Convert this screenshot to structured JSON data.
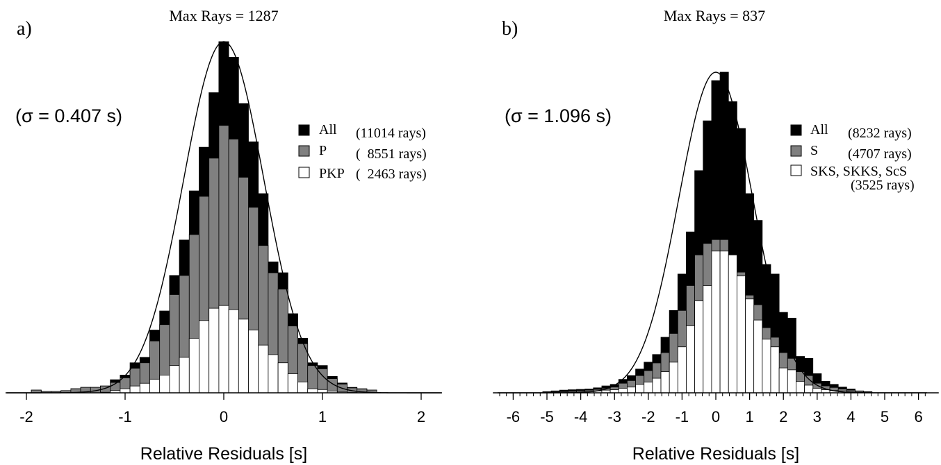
{
  "colors": {
    "all": "#000000",
    "p": "#808080",
    "pkp": "#ffffff",
    "outline": "#000000"
  },
  "chart_data": [
    {
      "type": "bar",
      "panel_label": "a)",
      "title": "Max Rays = 1287",
      "sigma_text": "(σ = 0.407 s)",
      "xlabel": "Relative Residuals [s]",
      "ylabel": "",
      "xlim": [
        -2.2,
        2.2
      ],
      "ylim": [
        0,
        1287
      ],
      "bin_width": 0.1,
      "xticks": [
        -2,
        -1,
        0,
        1,
        2
      ],
      "xtick_labels": [
        "-2",
        "-1",
        "0",
        "1",
        "2"
      ],
      "legend": [
        {
          "label": "All",
          "count": "(11014 rays)",
          "swatch": "all"
        },
        {
          "label": "P",
          "count": "(  8551 rays)",
          "swatch": "p"
        },
        {
          "label": "PKP",
          "count": "(  2463 rays)",
          "swatch": "pkp"
        }
      ],
      "x": [
        -1.9,
        -1.8,
        -1.7,
        -1.6,
        -1.5,
        -1.4,
        -1.3,
        -1.2,
        -1.1,
        -1.0,
        -0.9,
        -0.8,
        -0.7,
        -0.6,
        -0.5,
        -0.4,
        -0.3,
        -0.2,
        -0.1,
        0.0,
        0.1,
        0.2,
        0.3,
        0.4,
        0.5,
        0.6,
        0.7,
        0.8,
        0.9,
        1.0,
        1.1,
        1.2,
        1.3,
        1.4,
        1.5
      ],
      "series": [
        {
          "name": "All",
          "values": [
            10,
            5,
            5,
            8,
            15,
            20,
            20,
            25,
            48,
            65,
            110,
            130,
            230,
            300,
            430,
            560,
            740,
            900,
            1100,
            1287,
            1230,
            1060,
            920,
            730,
            480,
            440,
            290,
            200,
            110,
            100,
            60,
            36,
            20,
            15,
            10
          ]
        },
        {
          "name": "P",
          "values": [
            10,
            5,
            5,
            8,
            15,
            20,
            20,
            25,
            38,
            55,
            90,
            110,
            190,
            250,
            360,
            430,
            580,
            720,
            860,
            980,
            930,
            790,
            680,
            540,
            440,
            380,
            245,
            180,
            100,
            88,
            52,
            32,
            18,
            14,
            10
          ]
        },
        {
          "name": "PKP",
          "values": [
            0,
            0,
            0,
            0,
            0,
            0,
            0,
            2,
            8,
            15,
            25,
            35,
            50,
            65,
            100,
            130,
            200,
            265,
            310,
            320,
            305,
            270,
            230,
            175,
            140,
            110,
            70,
            40,
            15,
            12,
            6,
            3,
            1,
            0,
            0
          ]
        }
      ],
      "curve": {
        "type": "gaussian",
        "mu": 0.0,
        "sigma": 0.407,
        "peak": 1287
      }
    },
    {
      "type": "bar",
      "panel_label": "b)",
      "title": "Max Rays = 837",
      "sigma_text": "(σ = 1.096 s)",
      "xlabel": "Relative Residuals [s]",
      "ylabel": "",
      "xlim": [
        -6.6,
        6.6
      ],
      "ylim": [
        0,
        837
      ],
      "bin_width": 0.25,
      "xticks": [
        -6,
        -5,
        -4,
        -3,
        -2,
        -1,
        0,
        1,
        2,
        3,
        4,
        5,
        6
      ],
      "xtick_labels": [
        "-6",
        "-5",
        "-4",
        "-3",
        "-2",
        "-1",
        "0",
        "1",
        "2",
        "3",
        "4",
        "5",
        "6"
      ],
      "legend": [
        {
          "label": "All",
          "count": "(8232 rays)",
          "swatch": "all"
        },
        {
          "label": "S",
          "count": "(4707 rays)",
          "swatch": "p"
        },
        {
          "label": "SKS, SKKS, ScS",
          "count": "(3525 rays)",
          "swatch": "pkp"
        }
      ],
      "x": [
        -5.0,
        -4.75,
        -4.5,
        -4.25,
        -4.0,
        -3.75,
        -3.5,
        -3.25,
        -3.0,
        -2.75,
        -2.5,
        -2.25,
        -2.0,
        -1.75,
        -1.5,
        -1.25,
        -1.0,
        -0.75,
        -0.5,
        -0.25,
        0.0,
        0.25,
        0.5,
        0.75,
        1.0,
        1.25,
        1.5,
        1.75,
        2.0,
        2.25,
        2.5,
        2.75,
        3.0,
        3.25,
        3.5,
        3.75,
        4.0,
        4.25,
        4.5
      ],
      "series": [
        {
          "name": "All",
          "values": [
            3,
            5,
            7,
            8,
            9,
            10,
            13,
            18,
            22,
            35,
            45,
            62,
            80,
            100,
            145,
            215,
            310,
            420,
            580,
            710,
            815,
            837,
            760,
            690,
            520,
            450,
            335,
            310,
            210,
            195,
            95,
            90,
            50,
            30,
            22,
            15,
            10,
            5,
            3
          ]
        },
        {
          "name": "S",
          "values": [
            2,
            3,
            4,
            5,
            6,
            7,
            9,
            12,
            15,
            25,
            32,
            45,
            58,
            78,
            105,
            155,
            215,
            280,
            360,
            390,
            400,
            400,
            345,
            315,
            255,
            230,
            170,
            145,
            105,
            90,
            55,
            45,
            25,
            18,
            14,
            10,
            7,
            4,
            2
          ]
        },
        {
          "name": "SKS, SKKS, ScS",
          "values": [
            1,
            1,
            2,
            2,
            3,
            3,
            5,
            7,
            8,
            12,
            15,
            22,
            28,
            38,
            55,
            80,
            120,
            175,
            240,
            280,
            370,
            370,
            360,
            305,
            245,
            190,
            140,
            120,
            65,
            60,
            30,
            20,
            12,
            8,
            6,
            5,
            3,
            1,
            1
          ]
        }
      ],
      "curve": {
        "type": "gaussian",
        "mu": 0.0,
        "sigma": 1.096,
        "peak": 837
      }
    }
  ]
}
